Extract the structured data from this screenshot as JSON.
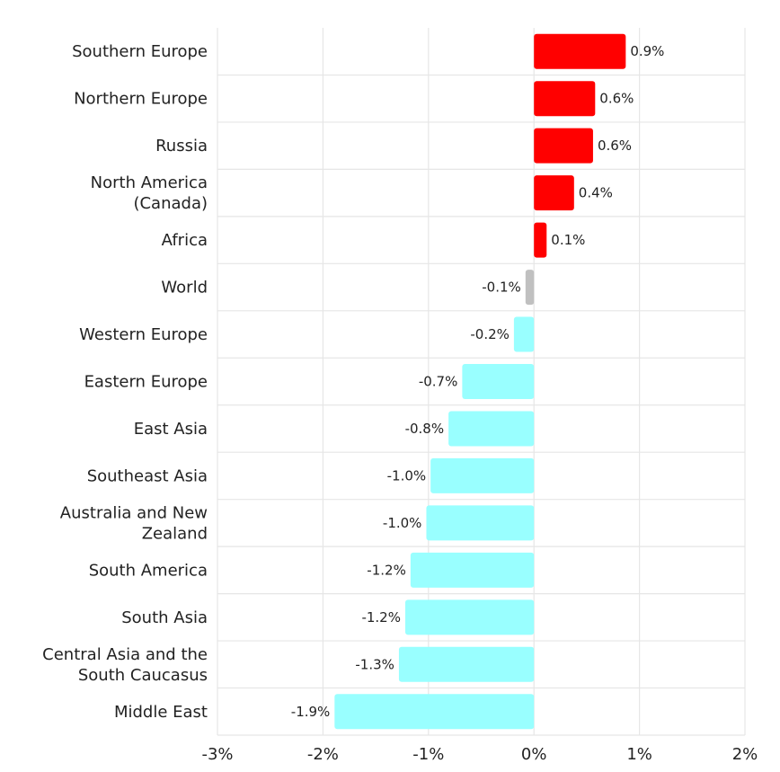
{
  "colors": {
    "positive": "#ff0000",
    "negative": "#99ffff",
    "world": "#c0c0c0",
    "grid": "#e6e6e6"
  },
  "chart_data": {
    "type": "bar",
    "orientation": "horizontal",
    "categories": [
      "Southern Europe",
      "Northern Europe",
      "Russia",
      "North America (Canada)",
      "Africa",
      "World",
      "Western Europe",
      "Eastern Europe",
      "East Asia",
      "Southeast Asia",
      "Australia and New Zealand",
      "South America",
      "South Asia",
      "Central Asia and the South Caucasus",
      "Middle East"
    ],
    "category_lines": [
      [
        "Southern Europe"
      ],
      [
        "Northern Europe"
      ],
      [
        "Russia"
      ],
      [
        "North America",
        "(Canada)"
      ],
      [
        "Africa"
      ],
      [
        "World"
      ],
      [
        "Western Europe"
      ],
      [
        "Eastern Europe"
      ],
      [
        "East Asia"
      ],
      [
        "Southeast Asia"
      ],
      [
        "Australia and New",
        "Zealand"
      ],
      [
        "South America"
      ],
      [
        "South Asia"
      ],
      [
        "Central Asia and the",
        "South Caucasus"
      ],
      [
        "Middle East"
      ]
    ],
    "values": [
      0.87,
      0.58,
      0.56,
      0.38,
      0.12,
      -0.08,
      -0.19,
      -0.68,
      -0.81,
      -0.98,
      -1.02,
      -1.17,
      -1.22,
      -1.28,
      -1.89
    ],
    "value_labels": [
      "0.9%",
      "0.6%",
      "0.6%",
      "0.4%",
      "0.1%",
      "-0.1%",
      "-0.2%",
      "-0.7%",
      "-0.8%",
      "-1.0%",
      "-1.0%",
      "-1.2%",
      "-1.2%",
      "-1.3%",
      "-1.9%"
    ],
    "xlim": [
      -3,
      2
    ],
    "xticks": [
      -3,
      -2,
      -1,
      0,
      1,
      2
    ],
    "xtick_labels": [
      "-3%",
      "-2%",
      "-1%",
      "0%",
      "1%",
      "2%"
    ],
    "highlight_category": "World",
    "grid": true,
    "title": "",
    "xlabel": "",
    "ylabel": ""
  }
}
